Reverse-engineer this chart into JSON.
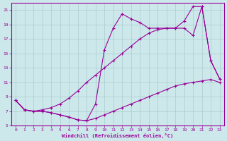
{
  "xlabel": "Windchill (Refroidissement éolien,°C)",
  "bg_color": "#cce8ea",
  "line_color": "#990099",
  "grid_color": "#aacccc",
  "xlim": [
    -0.5,
    23.5
  ],
  "ylim": [
    5,
    22
  ],
  "xticks": [
    0,
    1,
    2,
    3,
    4,
    5,
    6,
    7,
    8,
    9,
    10,
    11,
    12,
    13,
    14,
    15,
    16,
    17,
    18,
    19,
    20,
    21,
    22,
    23
  ],
  "yticks": [
    5,
    7,
    9,
    11,
    13,
    15,
    17,
    19,
    21
  ],
  "curve1_x": [
    0,
    1,
    2,
    3,
    4,
    5,
    6,
    7,
    8,
    9,
    10,
    11,
    12,
    13,
    14,
    15,
    16,
    17,
    18,
    19,
    20,
    21,
    22,
    23
  ],
  "curve1_y": [
    8.5,
    7.2,
    7.0,
    7.0,
    6.8,
    6.5,
    6.2,
    5.8,
    5.7,
    6.0,
    6.5,
    7.0,
    7.5,
    8.0,
    8.5,
    9.0,
    9.5,
    10.0,
    10.5,
    10.8,
    11.0,
    11.2,
    11.4,
    11.0
  ],
  "curve2_x": [
    0,
    1,
    2,
    3,
    4,
    5,
    6,
    7,
    8,
    9,
    10,
    11,
    12,
    13,
    14,
    15,
    16,
    17,
    18,
    19,
    20,
    21,
    22,
    23
  ],
  "curve2_y": [
    8.5,
    7.2,
    7.0,
    7.2,
    7.5,
    8.0,
    8.8,
    9.8,
    11.0,
    12.0,
    13.0,
    14.0,
    15.0,
    16.0,
    17.0,
    17.8,
    18.3,
    18.5,
    18.5,
    18.5,
    17.5,
    21.5,
    14.0,
    11.5
  ],
  "curve3_x": [
    0,
    1,
    2,
    3,
    4,
    5,
    6,
    7,
    8,
    9,
    10,
    11,
    12,
    13,
    14,
    15,
    16,
    17,
    18,
    19,
    20,
    21,
    22,
    23
  ],
  "curve3_y": [
    8.5,
    7.2,
    7.0,
    7.0,
    6.8,
    6.5,
    6.2,
    5.8,
    5.7,
    8.0,
    15.5,
    18.5,
    20.5,
    19.8,
    19.3,
    18.5,
    18.5,
    18.5,
    18.5,
    19.5,
    21.5,
    21.5,
    14.0,
    11.5
  ]
}
